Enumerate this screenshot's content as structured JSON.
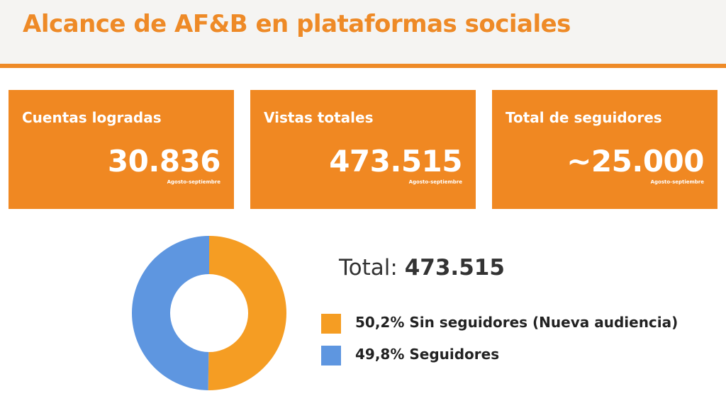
{
  "header": {
    "title": "Alcance de AF&B en plataformas sociales",
    "accent_color": "#ee8a27"
  },
  "cards": [
    {
      "title": "Cuentas logradas",
      "value": "30.836",
      "period": "Agosto-septiembre"
    },
    {
      "title": "Vistas totales",
      "value": "473.515",
      "period": "Agosto-septiembre"
    },
    {
      "title": "Total de seguidores",
      "value": "~25.000",
      "period": "Agosto-septiembre"
    }
  ],
  "total": {
    "label": "Total:",
    "value": "473.515"
  },
  "chart_data": {
    "type": "pie",
    "donut": true,
    "series": [
      {
        "label": "50,2% Sin seguidores (Nueva audiencia)",
        "value": 50.2,
        "color": "#f59d23"
      },
      {
        "label": "49,8% Seguidores",
        "value": 49.8,
        "color": "#5e96e0"
      }
    ]
  }
}
